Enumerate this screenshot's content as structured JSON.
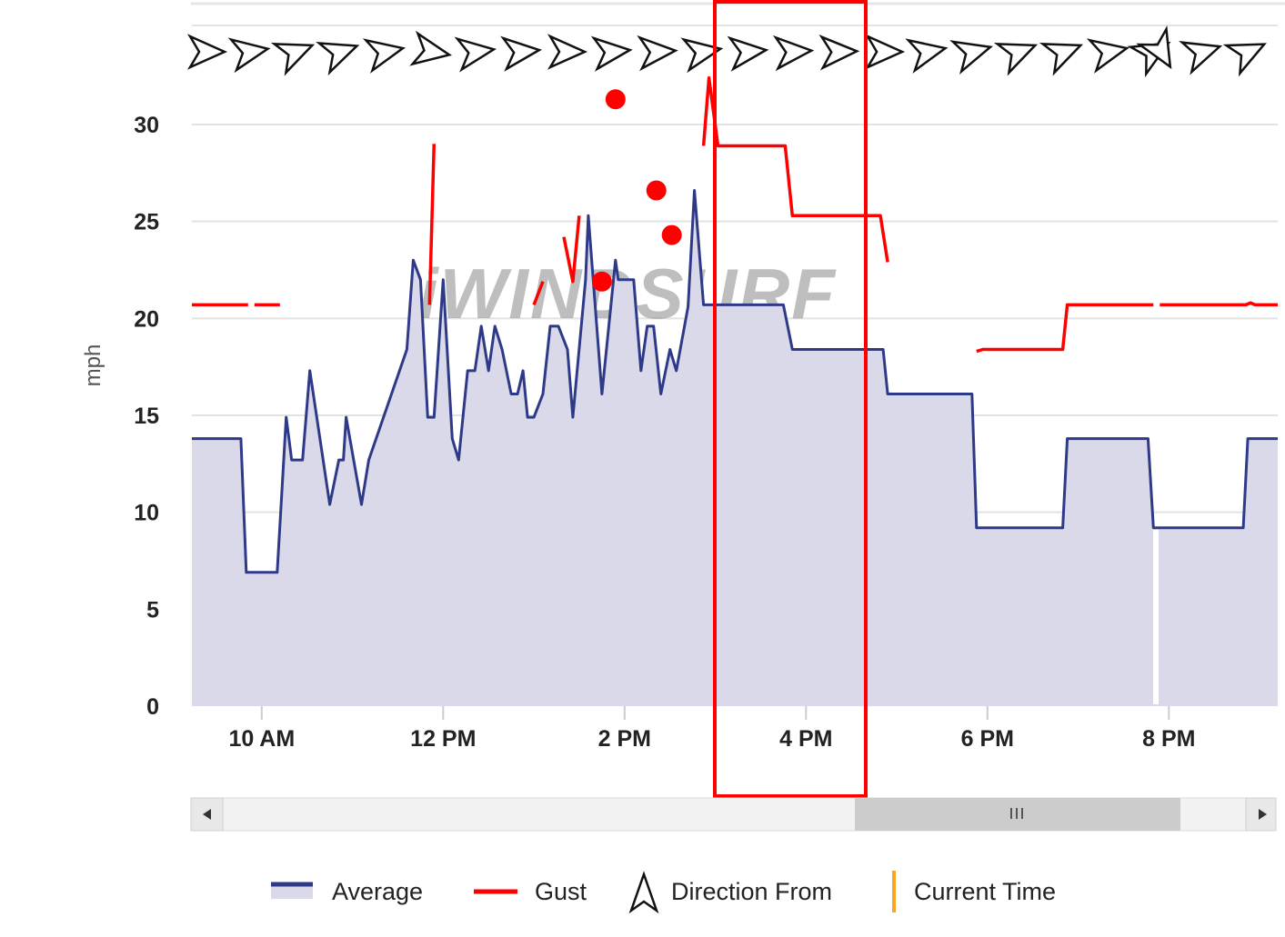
{
  "colors": {
    "average": "#2e3a87",
    "average_fill": "#d9d9e9",
    "gust": "#ff0000",
    "current_time": "#f5a623",
    "highlight": "#ff0000",
    "grid": "#e2e2e2"
  },
  "watermark": "iWINDSURF",
  "legend": {
    "average": "Average",
    "gust": "Gust",
    "direction": "Direction From",
    "current_time": "Current Time"
  },
  "chart_data": {
    "type": "line",
    "xlabel": "",
    "ylabel": "mph",
    "ylim": [
      0,
      30
    ],
    "yticks": [
      0,
      5,
      10,
      15,
      20,
      25,
      30
    ],
    "xlim": [
      9.23,
      21.2
    ],
    "xticks": [
      {
        "value": 10,
        "label": "10 AM"
      },
      {
        "value": 12,
        "label": "12 PM"
      },
      {
        "value": 14,
        "label": "2 PM"
      },
      {
        "value": 16,
        "label": "4 PM"
      },
      {
        "value": 18,
        "label": "6 PM"
      },
      {
        "value": 20,
        "label": "8 PM"
      }
    ],
    "grid": true,
    "legend_position": "bottom",
    "highlight_range": [
      15.0,
      16.67
    ],
    "series": [
      {
        "name": "Average",
        "type": "area",
        "points": [
          [
            9.23,
            13.8
          ],
          [
            9.77,
            13.8
          ],
          [
            9.83,
            6.9
          ],
          [
            10.17,
            6.9
          ],
          [
            10.27,
            14.9
          ],
          [
            10.33,
            12.7
          ],
          [
            10.45,
            12.7
          ],
          [
            10.53,
            17.3
          ],
          [
            10.75,
            10.4
          ],
          [
            10.85,
            12.7
          ],
          [
            10.9,
            12.7
          ],
          [
            10.93,
            14.9
          ],
          [
            11.1,
            10.4
          ],
          [
            11.18,
            12.7
          ],
          [
            11.6,
            18.4
          ],
          [
            11.67,
            23.0
          ],
          [
            11.75,
            22.0
          ],
          [
            11.83,
            14.9
          ],
          [
            11.9,
            14.9
          ],
          [
            12.0,
            22.0
          ],
          [
            12.1,
            13.8
          ],
          [
            12.17,
            12.7
          ],
          [
            12.27,
            17.3
          ],
          [
            12.35,
            17.3
          ],
          [
            12.42,
            19.6
          ],
          [
            12.5,
            17.3
          ],
          [
            12.57,
            19.6
          ],
          [
            12.65,
            18.4
          ],
          [
            12.75,
            16.1
          ],
          [
            12.82,
            16.1
          ],
          [
            12.88,
            17.3
          ],
          [
            12.93,
            14.9
          ],
          [
            13.0,
            14.9
          ],
          [
            13.1,
            16.1
          ],
          [
            13.18,
            19.6
          ],
          [
            13.27,
            19.6
          ],
          [
            13.37,
            18.4
          ],
          [
            13.43,
            14.9
          ],
          [
            13.57,
            22.0
          ],
          [
            13.6,
            25.3
          ],
          [
            13.75,
            16.1
          ],
          [
            13.9,
            23.0
          ],
          [
            13.93,
            22.0
          ],
          [
            14.0,
            22.0
          ],
          [
            14.1,
            22.0
          ],
          [
            14.18,
            17.3
          ],
          [
            14.25,
            19.6
          ],
          [
            14.32,
            19.6
          ],
          [
            14.4,
            16.1
          ],
          [
            14.5,
            18.4
          ],
          [
            14.57,
            17.3
          ],
          [
            14.7,
            20.6
          ],
          [
            14.77,
            26.6
          ],
          [
            14.87,
            20.7
          ],
          [
            14.95,
            20.7
          ],
          [
            15.0,
            20.7
          ],
          [
            15.75,
            20.7
          ],
          [
            15.85,
            18.4
          ],
          [
            15.9,
            18.4
          ],
          [
            16.85,
            18.4
          ],
          [
            16.9,
            16.1
          ],
          [
            17.83,
            16.1
          ],
          [
            17.88,
            9.2
          ],
          [
            18.83,
            9.2
          ],
          [
            18.88,
            13.8
          ],
          [
            19.77,
            13.8
          ],
          [
            19.83,
            9.2
          ],
          [
            20.82,
            9.2
          ],
          [
            20.87,
            13.8
          ],
          [
            21.2,
            13.8
          ]
        ]
      },
      {
        "name": "Gust",
        "type": "line",
        "segments": [
          [
            [
              9.23,
              20.7
            ],
            [
              9.85,
              20.7
            ]
          ],
          [
            [
              9.92,
              20.7
            ],
            [
              10.2,
              20.7
            ]
          ],
          [
            [
              11.85,
              20.7
            ],
            [
              11.9,
              29.0
            ]
          ],
          [
            [
              13.0,
              20.7
            ],
            [
              13.1,
              21.9
            ]
          ],
          [
            [
              13.33,
              24.2
            ],
            [
              13.43,
              21.9
            ],
            [
              13.5,
              25.3
            ]
          ],
          [
            [
              14.87,
              28.9
            ],
            [
              14.93,
              32.4
            ],
            [
              15.03,
              28.9
            ],
            [
              15.77,
              28.9
            ],
            [
              15.85,
              25.3
            ],
            [
              16.82,
              25.3
            ],
            [
              16.9,
              22.9
            ]
          ],
          [
            [
              17.88,
              18.3
            ],
            [
              17.95,
              18.4
            ],
            [
              18.83,
              18.4
            ],
            [
              18.88,
              20.7
            ],
            [
              19.83,
              20.7
            ]
          ],
          [
            [
              19.9,
              20.7
            ],
            [
              20.85,
              20.7
            ],
            [
              20.9,
              20.8
            ],
            [
              20.95,
              20.7
            ],
            [
              21.2,
              20.7
            ]
          ]
        ],
        "points": [
          [
            13.9,
            31.3
          ],
          [
            14.35,
            26.6
          ],
          [
            14.52,
            24.3
          ],
          [
            13.75,
            21.9
          ]
        ]
      }
    ],
    "direction_from": [
      {
        "x": 9.4,
        "angle": 0
      },
      {
        "x": 9.88,
        "angle": -10
      },
      {
        "x": 10.38,
        "angle": -22
      },
      {
        "x": 10.87,
        "angle": -20
      },
      {
        "x": 11.37,
        "angle": -12
      },
      {
        "x": 11.88,
        "angle": 10
      },
      {
        "x": 12.37,
        "angle": -8
      },
      {
        "x": 12.87,
        "angle": -6
      },
      {
        "x": 13.37,
        "angle": 0
      },
      {
        "x": 13.87,
        "angle": -6
      },
      {
        "x": 14.37,
        "angle": -4
      },
      {
        "x": 14.87,
        "angle": -10
      },
      {
        "x": 15.37,
        "angle": -6
      },
      {
        "x": 15.87,
        "angle": -4
      },
      {
        "x": 16.37,
        "angle": -2
      },
      {
        "x": 16.87,
        "angle": 0
      },
      {
        "x": 17.35,
        "angle": -12
      },
      {
        "x": 17.85,
        "angle": -16
      },
      {
        "x": 18.35,
        "angle": -22
      },
      {
        "x": 18.85,
        "angle": -22
      },
      {
        "x": 19.35,
        "angle": -12
      },
      {
        "x": 19.83,
        "angle": -30
      },
      {
        "x": 19.92,
        "angle": 60
      },
      {
        "x": 20.38,
        "angle": -18
      },
      {
        "x": 20.88,
        "angle": -26
      }
    ]
  }
}
